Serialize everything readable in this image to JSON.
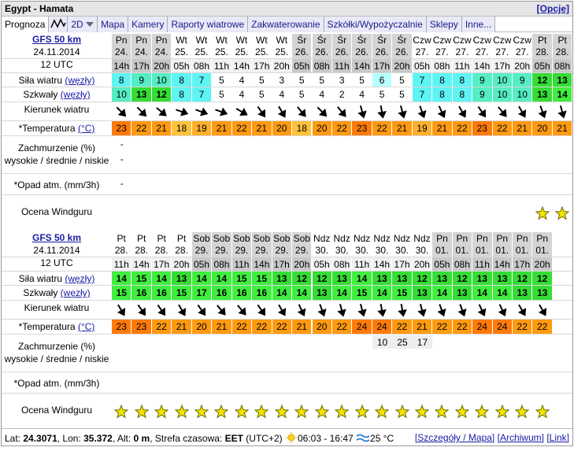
{
  "header": {
    "title": "Egypt - Hamata",
    "options": "[Opcje]"
  },
  "tabs": [
    "Prognoza",
    "2D",
    "Mapa",
    "Kamery",
    "Raporty wiatrowe",
    "Zakwaterowanie",
    "Szkółki/Wypożyczalnie",
    "Sklepy",
    "Inne..."
  ],
  "row_labels": {
    "wind": "Siła wiatru",
    "wind_unit": "(węzły)",
    "gusts": "Szkwały",
    "gusts_unit": "(węzły)",
    "direction": "Kierunek wiatru",
    "temperature": "*Temperatura",
    "temperature_unit": "(°C)",
    "clouds": "Zachmurzenie (%)",
    "clouds_levels": "wysokie / średnie / niskie",
    "precipitation": "*Opad atm. (mm/3h)",
    "rating": "Ocena Windguru"
  },
  "forecasts": [
    {
      "model": "GFS 50 km",
      "date": "24.11.2014",
      "run": "12 UTC",
      "days": [
        "Pn",
        "Pn",
        "Pn",
        "Wt",
        "Wt",
        "Wt",
        "Wt",
        "Wt",
        "Wt",
        "Śr",
        "Śr",
        "Śr",
        "Śr",
        "Śr",
        "Śr",
        "Czw",
        "Czw",
        "Czw",
        "Czw",
        "Czw",
        "Czw",
        "Pt",
        "Pt"
      ],
      "dates": [
        "24.",
        "24.",
        "24.",
        "25.",
        "25.",
        "25.",
        "25.",
        "25.",
        "25.",
        "26.",
        "26.",
        "26.",
        "26.",
        "26.",
        "26.",
        "27.",
        "27.",
        "27.",
        "27.",
        "27.",
        "27.",
        "28.",
        "28."
      ],
      "hours": [
        "14h",
        "17h",
        "20h",
        "05h",
        "08h",
        "11h",
        "14h",
        "17h",
        "20h",
        "05h",
        "08h",
        "11h",
        "14h",
        "17h",
        "20h",
        "05h",
        "08h",
        "11h",
        "14h",
        "17h",
        "20h",
        "05h",
        "08h"
      ],
      "wind": [
        8,
        9,
        10,
        8,
        7,
        5,
        4,
        5,
        3,
        5,
        5,
        3,
        5,
        6,
        5,
        7,
        8,
        8,
        9,
        10,
        9,
        12,
        13
      ],
      "gusts": [
        10,
        13,
        12,
        8,
        7,
        5,
        4,
        5,
        4,
        5,
        4,
        2,
        4,
        5,
        5,
        7,
        8,
        8,
        9,
        10,
        10,
        13,
        14
      ],
      "direction": [
        315,
        315,
        310,
        290,
        290,
        290,
        300,
        325,
        330,
        320,
        315,
        320,
        345,
        350,
        345,
        340,
        335,
        330,
        325,
        320,
        330,
        340,
        345
      ],
      "temperature": [
        23,
        22,
        21,
        18,
        19,
        21,
        22,
        21,
        20,
        18,
        20,
        22,
        23,
        22,
        21,
        19,
        21,
        22,
        23,
        22,
        21,
        20,
        21
      ],
      "clouds_high": [
        "-",
        null,
        null,
        null,
        null,
        null,
        null,
        null,
        null,
        null,
        null,
        null,
        null,
        null,
        null,
        null,
        null,
        null,
        null,
        null,
        null,
        null,
        null
      ],
      "clouds_mid": [
        "-",
        null,
        null,
        null,
        null,
        null,
        null,
        null,
        null,
        null,
        null,
        null,
        null,
        null,
        null,
        null,
        null,
        null,
        null,
        null,
        null,
        null,
        null
      ],
      "precipitation": [
        "-",
        null,
        null,
        null,
        null,
        null,
        null,
        null,
        null,
        null,
        null,
        null,
        null,
        null,
        null,
        null,
        null,
        null,
        null,
        null,
        null,
        null,
        null
      ],
      "rating": [
        0,
        0,
        0,
        0,
        0,
        0,
        0,
        0,
        0,
        0,
        0,
        0,
        0,
        0,
        0,
        0,
        0,
        0,
        0,
        0,
        0,
        1,
        1
      ]
    },
    {
      "model": "GFS 50 km",
      "date": "24.11.2014",
      "run": "12 UTC",
      "days": [
        "Pt",
        "Pt",
        "Pt",
        "Pt",
        "Sob",
        "Sob",
        "Sob",
        "Sob",
        "Sob",
        "Sob",
        "Ndz",
        "Ndz",
        "Ndz",
        "Ndz",
        "Ndz",
        "Ndz",
        "Pn",
        "Pn",
        "Pn",
        "Pn",
        "Pn",
        "Pn"
      ],
      "dates": [
        "28.",
        "28.",
        "28.",
        "28.",
        "29.",
        "29.",
        "29.",
        "29.",
        "29.",
        "29.",
        "30.",
        "30.",
        "30.",
        "30.",
        "30.",
        "30.",
        "01.",
        "01.",
        "01.",
        "01.",
        "01.",
        "01."
      ],
      "hours": [
        "11h",
        "14h",
        "17h",
        "20h",
        "05h",
        "08h",
        "11h",
        "14h",
        "17h",
        "20h",
        "05h",
        "08h",
        "11h",
        "14h",
        "17h",
        "20h",
        "05h",
        "08h",
        "11h",
        "14h",
        "17h",
        "20h"
      ],
      "wind": [
        14,
        15,
        14,
        13,
        14,
        14,
        15,
        15,
        13,
        12,
        12,
        13,
        14,
        13,
        13,
        12,
        13,
        12,
        13,
        13,
        12,
        12
      ],
      "gusts": [
        15,
        16,
        16,
        15,
        17,
        16,
        16,
        16,
        14,
        14,
        13,
        14,
        15,
        14,
        15,
        13,
        14,
        13,
        14,
        14,
        13,
        13
      ],
      "direction": [
        330,
        325,
        325,
        330,
        325,
        320,
        320,
        325,
        330,
        335,
        340,
        345,
        345,
        350,
        350,
        345,
        340,
        340,
        335,
        335,
        330,
        330
      ],
      "temperature": [
        23,
        23,
        22,
        21,
        20,
        21,
        22,
        22,
        22,
        21,
        20,
        22,
        24,
        24,
        22,
        21,
        22,
        22,
        24,
        24,
        22,
        22
      ],
      "clouds_high": [
        null,
        null,
        null,
        null,
        null,
        null,
        null,
        null,
        null,
        null,
        null,
        null,
        null,
        10,
        25,
        17,
        null,
        null,
        null,
        null,
        null,
        null
      ],
      "clouds_mid": [
        null,
        null,
        null,
        null,
        null,
        null,
        null,
        null,
        null,
        null,
        null,
        null,
        null,
        null,
        null,
        null,
        null,
        null,
        null,
        null,
        null,
        null
      ],
      "precipitation": [
        null,
        null,
        null,
        null,
        null,
        null,
        null,
        null,
        null,
        null,
        null,
        null,
        null,
        null,
        null,
        null,
        null,
        null,
        null,
        null,
        null,
        null
      ],
      "rating": [
        1,
        1,
        1,
        1,
        1,
        1,
        1,
        1,
        1,
        1,
        1,
        1,
        1,
        1,
        1,
        1,
        1,
        1,
        1,
        1,
        1,
        1
      ]
    }
  ],
  "footer": {
    "lat_label": "Lat:",
    "lat": "24.3071",
    "lon_label": ", Lon:",
    "lon": "35.372",
    "alt_label": ", Alt:",
    "alt": "0 m",
    "tz_label": ", Strefa czasowa:",
    "tz": "EET",
    "tz_offset": "(UTC+2)",
    "sun": "06:03 - 16:47",
    "water": "25 °C",
    "details": "[Szczegóły / Mapa]",
    "archive": "[Archiwum]",
    "link": "[Link]"
  }
}
